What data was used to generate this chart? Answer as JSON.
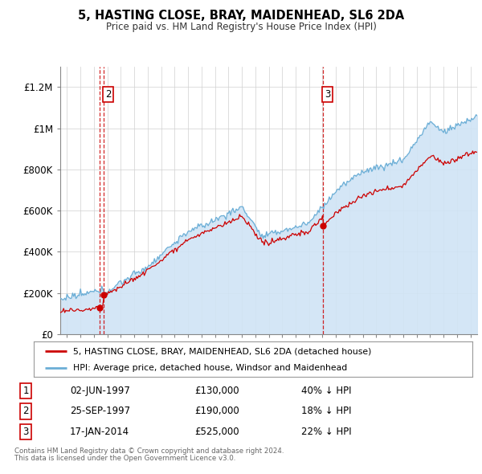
{
  "title": "5, HASTING CLOSE, BRAY, MAIDENHEAD, SL6 2DA",
  "subtitle": "Price paid vs. HM Land Registry's House Price Index (HPI)",
  "hpi_label": "HPI: Average price, detached house, Windsor and Maidenhead",
  "property_label": "5, HASTING CLOSE, BRAY, MAIDENHEAD, SL6 2DA (detached house)",
  "hpi_color": "#6baed6",
  "hpi_fill_color": "#d0e4f5",
  "property_color": "#cc0000",
  "sale_color": "#cc0000",
  "annotation_box_color": "#cc0000",
  "dashed_line_color": "#cc0000",
  "sales": [
    {
      "date_num": 1997.42,
      "price": 130000,
      "label": "1",
      "date_str": "02-JUN-1997",
      "pct": "40% ↓ HPI",
      "show_top": false
    },
    {
      "date_num": 1997.73,
      "price": 190000,
      "label": "2",
      "date_str": "25-SEP-1997",
      "pct": "18% ↓ HPI",
      "show_top": true
    },
    {
      "date_num": 2014.05,
      "price": 525000,
      "label": "3",
      "date_str": "17-JAN-2014",
      "pct": "22% ↓ HPI",
      "show_top": true
    }
  ],
  "footer_line1": "Contains HM Land Registry data © Crown copyright and database right 2024.",
  "footer_line2": "This data is licensed under the Open Government Licence v3.0.",
  "ylim": [
    0,
    1300000
  ],
  "yticks": [
    0,
    200000,
    400000,
    600000,
    800000,
    1000000,
    1200000
  ],
  "ytick_labels": [
    "£0",
    "£200K",
    "£400K",
    "£600K",
    "£800K",
    "£1M",
    "£1.2M"
  ],
  "xstart": 1994.5,
  "xend": 2025.5
}
